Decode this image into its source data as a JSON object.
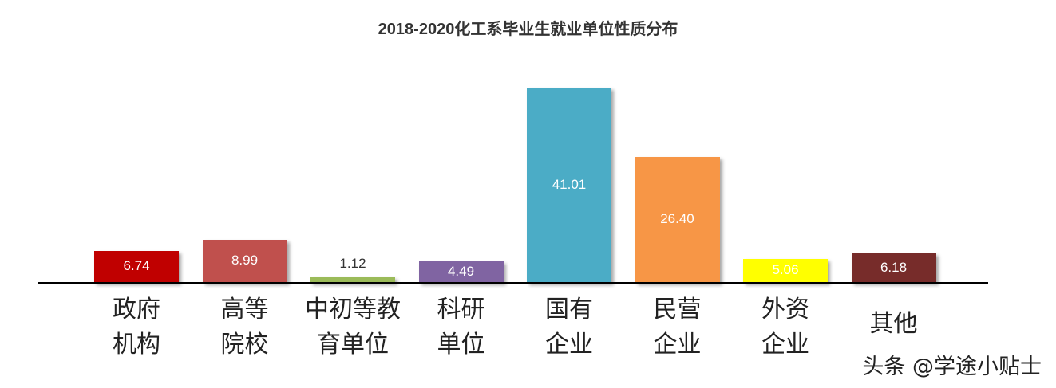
{
  "chart_data": {
    "type": "bar",
    "title": "2018-2020化工系毕业生就业单位性质分布",
    "xlabel": "",
    "ylabel": "",
    "ylim": [
      0,
      41.01
    ],
    "grid": false,
    "categories": [
      [
        "政府",
        "机构"
      ],
      [
        "高等",
        "院校"
      ],
      [
        "中初等教",
        "育单位"
      ],
      [
        "科研",
        "单位"
      ],
      [
        "国有",
        "企业"
      ],
      [
        "民营",
        "企业"
      ],
      [
        "外资",
        "企业"
      ],
      [
        "其他"
      ]
    ],
    "values": [
      6.74,
      8.99,
      1.12,
      4.49,
      41.01,
      26.4,
      5.06,
      6.18
    ],
    "labels": [
      "6.74",
      "8.99",
      "1.12",
      "4.49",
      "41.01",
      "26.40",
      "5.06",
      "6.18"
    ],
    "colors": [
      "#c00000",
      "#c0504d",
      "#9bbb59",
      "#8064a2",
      "#4bacc6",
      "#f79646",
      "#ffff00",
      "#772c2a"
    ],
    "label_colors": [
      "#ffffff",
      "#ffffff",
      "#333333",
      "#ffffff",
      "#ffffff",
      "#ffffff",
      "#ffffff",
      "#ffffff"
    ]
  },
  "watermark": "头条 @学途小贴士"
}
